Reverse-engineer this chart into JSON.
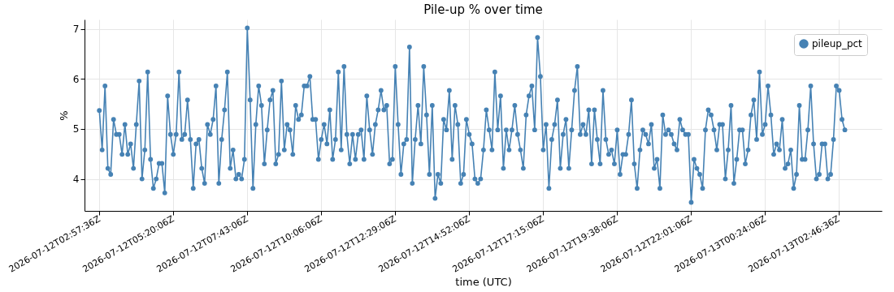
{
  "chart_data": {
    "type": "line",
    "title": "Pile-up % over time",
    "xlabel": "time (UTC)",
    "ylabel": "%",
    "grid": true,
    "legend": "top right",
    "marker": "circle",
    "line_style": "solid",
    "x": [
      "2026-07-12T02:57:36",
      "2026-07-12T03:03:06",
      "2026-07-12T03:08:36",
      "2026-07-12T03:14:06",
      "2026-07-12T03:19:36",
      "2026-07-12T03:25:06",
      "2026-07-12T03:30:36",
      "2026-07-12T03:36:06",
      "2026-07-12T03:41:36",
      "2026-07-12T03:47:06",
      "2026-07-12T03:52:36",
      "2026-07-12T03:58:06",
      "2026-07-12T04:03:36",
      "2026-07-12T04:09:06",
      "2026-07-12T04:14:36",
      "2026-07-12T04:20:06",
      "2026-07-12T04:25:36",
      "2026-07-12T04:31:06",
      "2026-07-12T04:36:36",
      "2026-07-12T04:42:06",
      "2026-07-12T04:47:36",
      "2026-07-12T04:53:06",
      "2026-07-12T04:58:36",
      "2026-07-12T05:04:06",
      "2026-07-12T05:09:36",
      "2026-07-12T05:15:06",
      "2026-07-12T05:20:36",
      "2026-07-12T05:26:06",
      "2026-07-12T05:31:36",
      "2026-07-12T05:37:06",
      "2026-07-12T05:42:36",
      "2026-07-12T05:48:06",
      "2026-07-12T05:53:36",
      "2026-07-12T05:59:06",
      "2026-07-12T06:04:36",
      "2026-07-12T06:10:06",
      "2026-07-12T06:15:36",
      "2026-07-12T06:21:06",
      "2026-07-12T06:26:36",
      "2026-07-12T06:32:06",
      "2026-07-12T06:37:36",
      "2026-07-12T06:43:06",
      "2026-07-12T06:48:36",
      "2026-07-12T06:54:06",
      "2026-07-12T06:59:36",
      "2026-07-12T07:05:06",
      "2026-07-12T07:10:36",
      "2026-07-12T07:16:06",
      "2026-07-12T07:21:36",
      "2026-07-12T07:27:06",
      "2026-07-12T07:32:36",
      "2026-07-12T07:38:06",
      "2026-07-12T07:43:36",
      "2026-07-12T07:49:06",
      "2026-07-12T07:54:36",
      "2026-07-12T08:00:06",
      "2026-07-12T08:05:36",
      "2026-07-12T08:11:06",
      "2026-07-12T08:16:36",
      "2026-07-12T08:22:06",
      "2026-07-12T08:27:36",
      "2026-07-12T08:33:06",
      "2026-07-12T08:38:36",
      "2026-07-12T08:44:06",
      "2026-07-12T08:49:36",
      "2026-07-12T08:55:06",
      "2026-07-12T09:00:36",
      "2026-07-12T09:06:06",
      "2026-07-12T09:11:36",
      "2026-07-12T09:17:06",
      "2026-07-12T09:22:36",
      "2026-07-12T09:28:06",
      "2026-07-12T09:33:36",
      "2026-07-12T09:39:06",
      "2026-07-12T09:44:36",
      "2026-07-12T09:50:06",
      "2026-07-12T09:55:36",
      "2026-07-12T10:01:06",
      "2026-07-12T10:06:36",
      "2026-07-12T10:12:06",
      "2026-07-12T10:17:36",
      "2026-07-12T10:23:06",
      "2026-07-12T10:28:36",
      "2026-07-12T10:34:06",
      "2026-07-12T10:39:36",
      "2026-07-12T10:45:06",
      "2026-07-12T10:50:36",
      "2026-07-12T10:56:06",
      "2026-07-12T11:01:36",
      "2026-07-12T11:07:06",
      "2026-07-12T11:12:36",
      "2026-07-12T11:18:06",
      "2026-07-12T11:23:36",
      "2026-07-12T11:29:06",
      "2026-07-12T11:34:36",
      "2026-07-12T11:40:06",
      "2026-07-12T11:45:36",
      "2026-07-12T11:51:06",
      "2026-07-12T11:56:36",
      "2026-07-12T12:02:06",
      "2026-07-12T12:07:36",
      "2026-07-12T12:13:06",
      "2026-07-12T12:18:36",
      "2026-07-12T12:24:06",
      "2026-07-12T12:29:36",
      "2026-07-12T12:35:06",
      "2026-07-12T12:40:36",
      "2026-07-12T12:46:06",
      "2026-07-12T12:51:36",
      "2026-07-12T12:57:06",
      "2026-07-12T13:02:36",
      "2026-07-12T13:08:06",
      "2026-07-12T13:13:36",
      "2026-07-12T13:19:06",
      "2026-07-12T13:24:36",
      "2026-07-12T13:30:06",
      "2026-07-12T13:35:36",
      "2026-07-12T13:41:06",
      "2026-07-12T13:46:36",
      "2026-07-12T13:52:06",
      "2026-07-12T13:57:36",
      "2026-07-12T14:03:06",
      "2026-07-12T14:08:36",
      "2026-07-12T14:14:06",
      "2026-07-12T14:19:36",
      "2026-07-12T14:25:06",
      "2026-07-12T14:30:36",
      "2026-07-12T14:36:06",
      "2026-07-12T14:41:36",
      "2026-07-12T14:47:06",
      "2026-07-12T14:52:36",
      "2026-07-12T14:58:06",
      "2026-07-12T15:03:36",
      "2026-07-12T15:09:06",
      "2026-07-12T15:14:36",
      "2026-07-12T15:20:06",
      "2026-07-12T15:25:36",
      "2026-07-12T15:31:06",
      "2026-07-12T15:36:36",
      "2026-07-12T15:42:06",
      "2026-07-12T15:47:36",
      "2026-07-12T15:53:06",
      "2026-07-12T15:58:36",
      "2026-07-12T16:04:06",
      "2026-07-12T16:09:36",
      "2026-07-12T16:15:06",
      "2026-07-12T16:20:36",
      "2026-07-12T16:26:06",
      "2026-07-12T16:31:36",
      "2026-07-12T16:37:06",
      "2026-07-12T16:42:36",
      "2026-07-12T16:48:06",
      "2026-07-12T16:53:36",
      "2026-07-12T16:59:06",
      "2026-07-12T17:04:36",
      "2026-07-12T17:10:06",
      "2026-07-12T17:15:36",
      "2026-07-12T17:21:06",
      "2026-07-12T17:26:36",
      "2026-07-12T17:32:06",
      "2026-07-12T17:37:36",
      "2026-07-12T17:43:06",
      "2026-07-12T17:48:36",
      "2026-07-12T17:54:06",
      "2026-07-12T17:59:36",
      "2026-07-12T18:05:06",
      "2026-07-12T18:10:36",
      "2026-07-12T18:16:06",
      "2026-07-12T18:21:36",
      "2026-07-12T18:27:06",
      "2026-07-12T18:32:36",
      "2026-07-12T18:38:06",
      "2026-07-12T18:43:36",
      "2026-07-12T18:49:06",
      "2026-07-12T18:54:36",
      "2026-07-12T19:00:06",
      "2026-07-12T19:05:36",
      "2026-07-12T19:11:06",
      "2026-07-12T19:16:36",
      "2026-07-12T19:22:06",
      "2026-07-12T19:27:36",
      "2026-07-12T19:33:06",
      "2026-07-12T19:38:36",
      "2026-07-12T19:44:06",
      "2026-07-12T19:49:36",
      "2026-07-12T19:55:06",
      "2026-07-12T20:00:36",
      "2026-07-12T20:06:06",
      "2026-07-12T20:11:36",
      "2026-07-12T20:17:06",
      "2026-07-12T20:22:36",
      "2026-07-12T20:28:06",
      "2026-07-12T20:33:36",
      "2026-07-12T20:39:06",
      "2026-07-12T20:44:36",
      "2026-07-12T20:50:06",
      "2026-07-12T20:55:36",
      "2026-07-12T21:01:06",
      "2026-07-12T21:06:36",
      "2026-07-12T21:12:06",
      "2026-07-12T21:17:36",
      "2026-07-12T21:23:06",
      "2026-07-12T21:28:36",
      "2026-07-12T21:34:06",
      "2026-07-12T21:39:36",
      "2026-07-12T21:45:06",
      "2026-07-12T21:50:36",
      "2026-07-12T21:56:06",
      "2026-07-12T22:01:36",
      "2026-07-12T22:07:06",
      "2026-07-12T22:12:36",
      "2026-07-12T22:18:06",
      "2026-07-12T22:23:36",
      "2026-07-12T22:29:06",
      "2026-07-12T22:34:36",
      "2026-07-12T22:40:06",
      "2026-07-12T22:45:36",
      "2026-07-12T22:51:06",
      "2026-07-12T22:56:36",
      "2026-07-12T23:02:06",
      "2026-07-12T23:07:36",
      "2026-07-12T23:13:06",
      "2026-07-12T23:18:36",
      "2026-07-12T23:24:06",
      "2026-07-12T23:29:36",
      "2026-07-12T23:35:06",
      "2026-07-12T23:40:36",
      "2026-07-12T23:46:06",
      "2026-07-12T23:51:36",
      "2026-07-12T23:57:06",
      "2026-07-13T00:02:36",
      "2026-07-13T00:08:06",
      "2026-07-13T00:13:36",
      "2026-07-13T00:19:06",
      "2026-07-13T00:24:36",
      "2026-07-13T00:30:06",
      "2026-07-13T00:35:36",
      "2026-07-13T00:41:06",
      "2026-07-13T00:46:36",
      "2026-07-13T00:52:06",
      "2026-07-13T00:57:36",
      "2026-07-13T01:03:06",
      "2026-07-13T01:08:36",
      "2026-07-13T01:14:06",
      "2026-07-13T01:19:36",
      "2026-07-13T01:25:06",
      "2026-07-13T01:30:36",
      "2026-07-13T01:36:06",
      "2026-07-13T01:41:36",
      "2026-07-13T01:47:06",
      "2026-07-13T01:52:36",
      "2026-07-13T01:58:06",
      "2026-07-13T02:03:36",
      "2026-07-13T02:09:06",
      "2026-07-13T02:14:36",
      "2026-07-13T02:20:06",
      "2026-07-13T02:25:36",
      "2026-07-13T02:31:06",
      "2026-07-13T02:36:36",
      "2026-07-13T02:42:06",
      "2026-07-13T02:47:36",
      "2026-07-13T02:53:06",
      "2026-07-13T02:58:36"
    ],
    "series": [
      {
        "name": "pileup_pct",
        "color": "#4682b4",
        "values": [
          5.37,
          4.58,
          5.86,
          4.21,
          4.09,
          5.19,
          4.89,
          4.89,
          4.49,
          5.09,
          4.49,
          4.7,
          4.21,
          5.09,
          5.96,
          4.0,
          4.58,
          6.14,
          4.39,
          3.81,
          4.0,
          4.31,
          4.31,
          3.72,
          5.66,
          4.89,
          4.49,
          4.89,
          6.14,
          4.79,
          4.89,
          5.58,
          4.79,
          3.81,
          4.7,
          4.79,
          4.21,
          3.91,
          5.09,
          4.89,
          5.19,
          5.86,
          3.91,
          4.79,
          5.38,
          6.14,
          4.21,
          4.58,
          4.0,
          4.09,
          4.0,
          4.39,
          7.02,
          5.58,
          3.81,
          5.09,
          5.86,
          5.47,
          4.3,
          4.98,
          5.58,
          5.77,
          4.3,
          4.49,
          5.96,
          4.58,
          5.09,
          4.98,
          4.49,
          5.47,
          5.19,
          5.28,
          5.86,
          5.86,
          6.05,
          5.19,
          5.19,
          4.39,
          4.79,
          5.09,
          4.7,
          5.38,
          4.39,
          4.79,
          6.14,
          4.58,
          6.25,
          4.89,
          4.3,
          4.89,
          4.39,
          4.89,
          4.98,
          4.39,
          5.66,
          4.98,
          4.49,
          5.09,
          5.38,
          5.77,
          5.38,
          5.47,
          4.3,
          4.39,
          6.25,
          5.09,
          4.09,
          4.7,
          4.79,
          6.64,
          3.91,
          4.79,
          5.47,
          4.7,
          6.25,
          5.28,
          4.09,
          5.47,
          3.61,
          4.09,
          3.91,
          5.19,
          4.98,
          5.77,
          4.39,
          5.47,
          5.09,
          3.91,
          4.09,
          5.19,
          4.89,
          4.7,
          4.0,
          3.91,
          4.0,
          4.58,
          5.38,
          4.98,
          4.58,
          6.14,
          4.98,
          5.66,
          4.21,
          4.98,
          4.58,
          4.98,
          5.47,
          4.89,
          4.58,
          4.21,
          5.28,
          5.66,
          5.86,
          4.98,
          6.83,
          6.05,
          4.58,
          5.09,
          3.81,
          4.79,
          5.09,
          5.58,
          4.21,
          4.89,
          5.19,
          4.21,
          4.98,
          5.77,
          6.25,
          4.89,
          5.09,
          4.89,
          5.38,
          4.3,
          5.38,
          4.79,
          4.3,
          5.77,
          4.79,
          4.49,
          4.58,
          4.3,
          4.98,
          4.09,
          4.49,
          4.49,
          4.89,
          5.58,
          4.3,
          3.81,
          4.58,
          4.98,
          4.89,
          4.7,
          5.09,
          4.21,
          4.39,
          3.81,
          5.28,
          4.89,
          4.98,
          4.89,
          4.7,
          4.58,
          5.19,
          4.98,
          4.89,
          4.89,
          3.53,
          4.39,
          4.21,
          4.09,
          3.81,
          4.98,
          5.38,
          5.28,
          4.98,
          4.58,
          5.09,
          5.09,
          4.0,
          4.58,
          5.47,
          3.91,
          4.39,
          4.98,
          4.98,
          4.3,
          4.58,
          5.28,
          5.58,
          4.79,
          6.14,
          4.89,
          5.09,
          5.86,
          5.28,
          4.49,
          4.7,
          4.58,
          5.19,
          4.21,
          4.3,
          4.58,
          3.81,
          4.09,
          5.47,
          4.39,
          4.39,
          4.98,
          5.86,
          4.7,
          4.0,
          4.09,
          4.7,
          4.7,
          4.0,
          4.09,
          4.79,
          5.86,
          5.77,
          5.19,
          4.98
        ]
      }
    ],
    "xlim": [
      "2026-07-12T02:29",
      "2026-07-13T04:10"
    ],
    "xticks": [
      {
        "value": "2026-07-12T02:57:36",
        "label": "2026-07-12T02:57:36Z"
      },
      {
        "value": "2026-07-12T05:20:06",
        "label": "2026-07-12T05:20:06Z"
      },
      {
        "value": "2026-07-12T07:43:06",
        "label": "2026-07-12T07:43:06Z"
      },
      {
        "value": "2026-07-12T10:06:06",
        "label": "2026-07-12T10:06:06Z"
      },
      {
        "value": "2026-07-12T12:29:06",
        "label": "2026-07-12T12:29:06Z"
      },
      {
        "value": "2026-07-12T14:52:06",
        "label": "2026-07-12T14:52:06Z"
      },
      {
        "value": "2026-07-12T17:15:06",
        "label": "2026-07-12T17:15:06Z"
      },
      {
        "value": "2026-07-12T19:38:06",
        "label": "2026-07-12T19:38:06Z"
      },
      {
        "value": "2026-07-12T22:01:06",
        "label": "2026-07-12T22:01:06Z"
      },
      {
        "value": "2026-07-13T00:24:06",
        "label": "2026-07-13T00:24:06Z"
      },
      {
        "value": "2026-07-13T02:46:36",
        "label": "2026-07-13T02:46:36Z"
      }
    ],
    "ylim": [
      3.36,
      7.19
    ],
    "yticks": [
      4,
      5,
      6,
      7
    ]
  }
}
